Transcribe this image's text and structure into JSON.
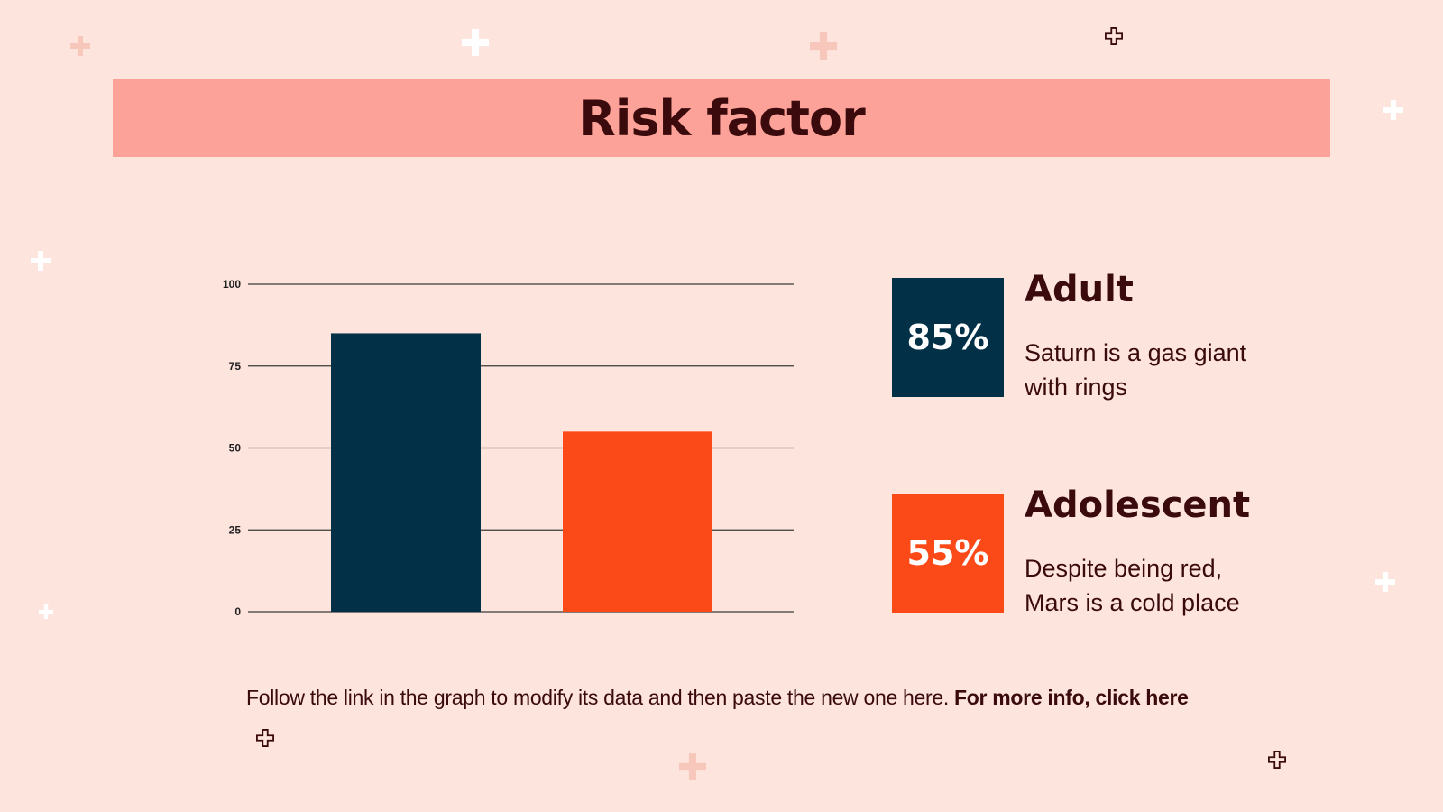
{
  "slide": {
    "title": "Risk factor",
    "footer_text": "Follow the link in the graph to modify its data and then paste the new one here.",
    "footer_link": "For more info, click here"
  },
  "stats": [
    {
      "percent": "85%",
      "heading": "Adult",
      "line1": "Saturn is a gas giant",
      "line2": "with rings",
      "color": "#023047"
    },
    {
      "percent": "55%",
      "heading": "Adolescent",
      "line1": "Despite being red,",
      "line2": "Mars is a cold place",
      "color": "#fb4a18"
    }
  ],
  "colors": {
    "background": "#fde4dd",
    "title_bar": "#fca298",
    "text": "#3a0a0c"
  },
  "chart_data": {
    "type": "bar",
    "categories": [
      "",
      ""
    ],
    "values": [
      85,
      55
    ],
    "colors": [
      "#023047",
      "#fb4a18"
    ],
    "title": "",
    "xlabel": "",
    "ylabel": "",
    "ylim": [
      0,
      100
    ],
    "yticks": [
      0,
      25,
      50,
      75,
      100
    ],
    "grid": true,
    "legend": "none"
  }
}
